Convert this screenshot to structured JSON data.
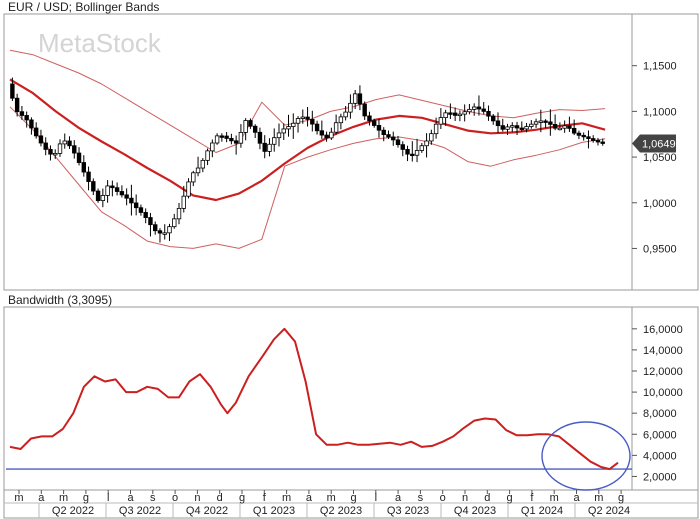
{
  "watermark": "MetaStock",
  "chart_data": [
    {
      "type": "candlestick",
      "title": "EUR / USD; Bollinger Bands",
      "ylim": [
        0.91,
        1.2
      ],
      "yticks": [
        "1,1500",
        "1,1000",
        "1,0500",
        "1,0000",
        "0,9500"
      ],
      "ytick_values": [
        1.15,
        1.1,
        1.05,
        1.0,
        0.95
      ],
      "last_value_label": "1,0649",
      "last_value": 1.0649,
      "x_range": [
        0,
        27
      ],
      "middle_band": [
        [
          0,
          1.135
        ],
        [
          1,
          1.12
        ],
        [
          2,
          1.1
        ],
        [
          3,
          1.082
        ],
        [
          4,
          1.067
        ],
        [
          5,
          1.053
        ],
        [
          6,
          1.038
        ],
        [
          7,
          1.024
        ],
        [
          8,
          1.008
        ],
        [
          9,
          1.003
        ],
        [
          10,
          1.01
        ],
        [
          11,
          1.024
        ],
        [
          12,
          1.043
        ],
        [
          13,
          1.06
        ],
        [
          14,
          1.073
        ],
        [
          15,
          1.083
        ],
        [
          16,
          1.091
        ],
        [
          17,
          1.095
        ],
        [
          18,
          1.093
        ],
        [
          19,
          1.086
        ],
        [
          20,
          1.079
        ],
        [
          21,
          1.076
        ],
        [
          22,
          1.077
        ],
        [
          23,
          1.08
        ],
        [
          24,
          1.084
        ],
        [
          25,
          1.087
        ],
        [
          26,
          1.08
        ]
      ],
      "upper_band": [
        [
          0,
          1.167
        ],
        [
          1,
          1.162
        ],
        [
          2,
          1.152
        ],
        [
          3,
          1.142
        ],
        [
          4,
          1.13
        ],
        [
          5,
          1.115
        ],
        [
          6,
          1.1
        ],
        [
          7,
          1.085
        ],
        [
          8,
          1.07
        ],
        [
          9,
          1.055
        ],
        [
          10,
          1.065
        ],
        [
          11,
          1.11
        ],
        [
          12,
          1.085
        ],
        [
          13,
          1.09
        ],
        [
          14,
          1.1
        ],
        [
          15,
          1.105
        ],
        [
          16,
          1.113
        ],
        [
          17,
          1.118
        ],
        [
          18,
          1.112
        ],
        [
          19,
          1.106
        ],
        [
          20,
          1.1
        ],
        [
          21,
          1.095
        ],
        [
          22,
          1.093
        ],
        [
          23,
          1.098
        ],
        [
          24,
          1.102
        ],
        [
          25,
          1.101
        ],
        [
          26,
          1.103
        ]
      ],
      "lower_band": [
        [
          0,
          1.105
        ],
        [
          1,
          1.08
        ],
        [
          2,
          1.05
        ],
        [
          3,
          1.02
        ],
        [
          4,
          0.99
        ],
        [
          5,
          0.975
        ],
        [
          6,
          0.958
        ],
        [
          7,
          0.952
        ],
        [
          8,
          0.95
        ],
        [
          9,
          0.955
        ],
        [
          10,
          0.95
        ],
        [
          11,
          0.96
        ],
        [
          12,
          1.04
        ],
        [
          13,
          1.05
        ],
        [
          14,
          1.058
        ],
        [
          15,
          1.065
        ],
        [
          16,
          1.07
        ],
        [
          17,
          1.072
        ],
        [
          18,
          1.068
        ],
        [
          19,
          1.06
        ],
        [
          20,
          1.045
        ],
        [
          21,
          1.04
        ],
        [
          22,
          1.047
        ],
        [
          23,
          1.052
        ],
        [
          24,
          1.058
        ],
        [
          25,
          1.066
        ],
        [
          26,
          1.07
        ]
      ],
      "close_path": [
        [
          0,
          1.13
        ],
        [
          0.4,
          1.1
        ],
        [
          0.8,
          1.092
        ],
        [
          1.2,
          1.075
        ],
        [
          1.6,
          1.06
        ],
        [
          2,
          1.05
        ],
        [
          2.4,
          1.07
        ],
        [
          2.8,
          1.06
        ],
        [
          3.2,
          1.04
        ],
        [
          3.6,
          1.02
        ],
        [
          4,
          1.0
        ],
        [
          4.4,
          1.02
        ],
        [
          4.8,
          1.012
        ],
        [
          5.2,
          1.005
        ],
        [
          5.6,
          0.995
        ],
        [
          6,
          0.985
        ],
        [
          6.4,
          0.97
        ],
        [
          6.8,
          0.965
        ],
        [
          7.2,
          0.978
        ],
        [
          7.6,
          1.0
        ],
        [
          8,
          1.03
        ],
        [
          8.4,
          1.04
        ],
        [
          8.8,
          1.06
        ],
        [
          9.2,
          1.075
        ],
        [
          9.6,
          1.07
        ],
        [
          10,
          1.065
        ],
        [
          10.4,
          1.09
        ],
        [
          10.8,
          1.078
        ],
        [
          11.2,
          1.055
        ],
        [
          11.6,
          1.07
        ],
        [
          12,
          1.08
        ],
        [
          12.4,
          1.085
        ],
        [
          12.8,
          1.095
        ],
        [
          13.2,
          1.09
        ],
        [
          13.6,
          1.076
        ],
        [
          14,
          1.07
        ],
        [
          14.4,
          1.09
        ],
        [
          14.8,
          1.1
        ],
        [
          15.2,
          1.12
        ],
        [
          15.6,
          1.095
        ],
        [
          16,
          1.085
        ],
        [
          16.4,
          1.075
        ],
        [
          16.8,
          1.07
        ],
        [
          17.2,
          1.06
        ],
        [
          17.6,
          1.05
        ],
        [
          18,
          1.06
        ],
        [
          18.4,
          1.07
        ],
        [
          18.8,
          1.09
        ],
        [
          19.2,
          1.1
        ],
        [
          19.6,
          1.095
        ],
        [
          20,
          1.1
        ],
        [
          20.4,
          1.105
        ],
        [
          20.8,
          1.1
        ],
        [
          21.2,
          1.09
        ],
        [
          21.6,
          1.08
        ],
        [
          22,
          1.085
        ],
        [
          22.4,
          1.08
        ],
        [
          22.8,
          1.085
        ],
        [
          23.2,
          1.09
        ],
        [
          23.6,
          1.088
        ],
        [
          24,
          1.08
        ],
        [
          24.4,
          1.085
        ],
        [
          24.8,
          1.075
        ],
        [
          25.2,
          1.072
        ],
        [
          25.6,
          1.068
        ],
        [
          26,
          1.0649
        ]
      ]
    },
    {
      "type": "line",
      "title": "Bandwidth (3,3095)",
      "ylim": [
        1.0,
        17.5
      ],
      "yticks": [
        "16,0000",
        "14,0000",
        "12,0000",
        "10,0000",
        "8,0000",
        "6,0000",
        "4,0000",
        "2,0000"
      ],
      "ytick_values": [
        16,
        14,
        12,
        10,
        8,
        6,
        4,
        2
      ],
      "reference_line": 2.7,
      "x_range": [
        0,
        27
      ],
      "bandwidth": [
        [
          0,
          4.8
        ],
        [
          0.5,
          4.6
        ],
        [
          1,
          5.6
        ],
        [
          1.5,
          5.8
        ],
        [
          2,
          5.8
        ],
        [
          2.5,
          6.5
        ],
        [
          3,
          8.0
        ],
        [
          3.5,
          10.5
        ],
        [
          4,
          11.5
        ],
        [
          4.5,
          11.0
        ],
        [
          5,
          11.2
        ],
        [
          5.5,
          10.0
        ],
        [
          6,
          10.0
        ],
        [
          6.5,
          10.5
        ],
        [
          7,
          10.3
        ],
        [
          7.5,
          9.5
        ],
        [
          8,
          9.5
        ],
        [
          8.5,
          11.0
        ],
        [
          9,
          11.7
        ],
        [
          9.5,
          10.5
        ],
        [
          10,
          8.8
        ],
        [
          10.3,
          8.0
        ],
        [
          10.7,
          9.0
        ],
        [
          11.3,
          11.5
        ],
        [
          12,
          13.5
        ],
        [
          12.5,
          15.0
        ],
        [
          13,
          16.0
        ],
        [
          13.5,
          14.8
        ],
        [
          14,
          11.0
        ],
        [
          14.5,
          6.0
        ],
        [
          15,
          5.0
        ],
        [
          15.5,
          5.0
        ],
        [
          16,
          5.2
        ],
        [
          16.5,
          5.0
        ],
        [
          17,
          5.0
        ],
        [
          17.5,
          5.1
        ],
        [
          18,
          5.2
        ],
        [
          18.5,
          5.0
        ],
        [
          19,
          5.3
        ],
        [
          19.5,
          4.8
        ],
        [
          20,
          4.9
        ],
        [
          20.5,
          5.3
        ],
        [
          21,
          5.8
        ],
        [
          21.5,
          6.6
        ],
        [
          22,
          7.3
        ],
        [
          22.5,
          7.5
        ],
        [
          23,
          7.4
        ],
        [
          23.5,
          6.4
        ],
        [
          24,
          5.9
        ],
        [
          24.5,
          5.9
        ],
        [
          25,
          6.0
        ],
        [
          25.5,
          6.0
        ],
        [
          26,
          5.8
        ],
        [
          26.5,
          5.0
        ],
        [
          27,
          4.2
        ],
        [
          27.5,
          3.4
        ],
        [
          28,
          2.9
        ],
        [
          28.4,
          2.7
        ],
        [
          28.8,
          3.3
        ]
      ],
      "annotation": "circle"
    }
  ],
  "x_axis": {
    "month_labels": [
      "m",
      "a",
      "m",
      "g",
      "l",
      "a",
      "s",
      "o",
      "n",
      "d",
      "g",
      "f",
      "m",
      "a",
      "m",
      "g",
      "l",
      "a",
      "s",
      "o",
      "n",
      "d",
      "g",
      "f",
      "m",
      "a",
      "m",
      "g"
    ],
    "quarter_labels": [
      "Q2 2022",
      "Q3 2022",
      "Q4 2022",
      "Q1 2023",
      "Q2 2023",
      "Q3 2023",
      "Q4 2023",
      "Q1 2024",
      "Q2 2024"
    ]
  }
}
